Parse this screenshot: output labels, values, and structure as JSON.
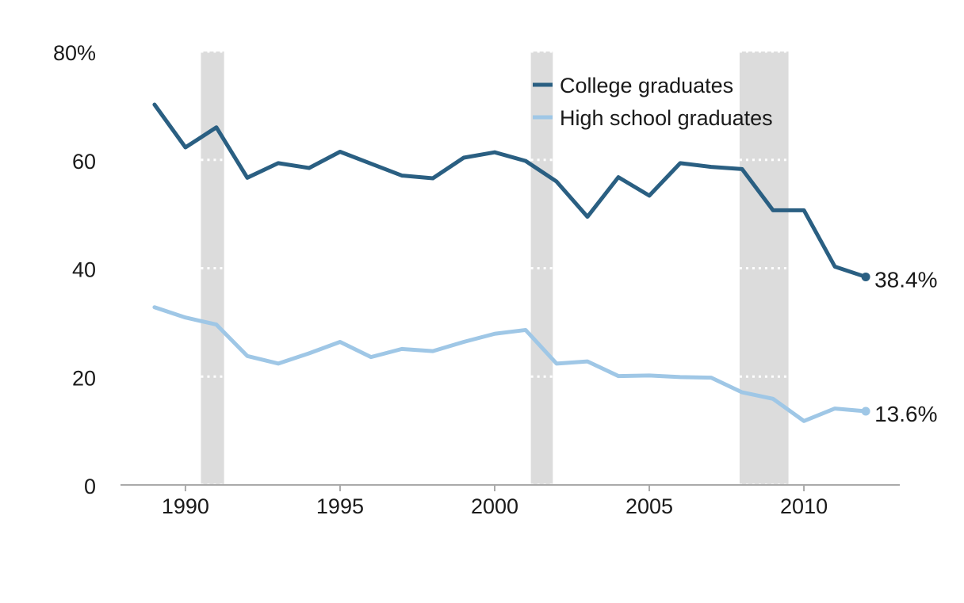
{
  "chart_data": {
    "type": "line",
    "title": "",
    "xlabel": "",
    "ylabel": "",
    "xlim": [
      1987.9,
      2013.1
    ],
    "ylim": [
      0,
      80
    ],
    "x_ticks": [
      1990,
      1995,
      2000,
      2005,
      2010
    ],
    "x_tick_labels": [
      "1990",
      "1995",
      "2000",
      "2005",
      "2010"
    ],
    "y_ticks": [
      0,
      20,
      40,
      60,
      80
    ],
    "y_tick_labels": [
      "0",
      "20",
      "40",
      "60",
      "80%"
    ],
    "grid": "dotted horizontal lines shown only inside recession bands",
    "legend_position": "top-right",
    "recession_bands": [
      {
        "start": 1990.5,
        "end": 1991.25
      },
      {
        "start": 2001.17,
        "end": 2001.88
      },
      {
        "start": 2007.92,
        "end": 2009.5
      }
    ],
    "x": [
      1989,
      1990,
      1991,
      1992,
      1993,
      1994,
      1995,
      1996,
      1997,
      1998,
      1999,
      2000,
      2001,
      2002,
      2003,
      2004,
      2005,
      2006,
      2007,
      2008,
      2009,
      2010,
      2011,
      2012
    ],
    "series": [
      {
        "name": "College graduates",
        "color": "#2a5f82",
        "values": [
          70.2,
          62.3,
          66.0,
          56.7,
          59.4,
          58.5,
          61.5,
          59.3,
          57.1,
          56.6,
          60.4,
          61.4,
          59.8,
          56.0,
          49.5,
          56.8,
          53.4,
          59.4,
          58.7,
          58.3,
          50.7,
          50.7,
          40.3,
          38.4
        ],
        "end_label": "38.4%"
      },
      {
        "name": "High school graduates",
        "color": "#9fc7e6",
        "values": [
          32.8,
          30.9,
          29.6,
          23.8,
          22.4,
          24.3,
          26.4,
          23.6,
          25.1,
          24.7,
          26.4,
          27.9,
          28.6,
          22.4,
          22.8,
          20.1,
          20.2,
          19.9,
          19.8,
          17.1,
          15.9,
          11.8,
          14.1,
          13.6
        ],
        "end_label": "13.6%"
      }
    ]
  }
}
